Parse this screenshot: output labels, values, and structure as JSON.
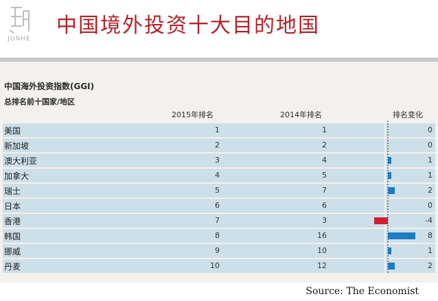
{
  "logo": {
    "brand": "JUNHE",
    "mark_icon": "junhe-seal-icon"
  },
  "page": {
    "title": "中国境外投资十大目的地国"
  },
  "source": "Source: The Economist",
  "colors": {
    "title": "#b0232a",
    "row": "#cddfe9",
    "positive_bar": "#1b7ec2",
    "negative_bar": "#d0202f"
  },
  "chart_data": {
    "type": "table",
    "title": "中国海外投资指数(GGI)",
    "subtitle": "总排名前十国家/地区",
    "columns": [
      "2015年排名",
      "2014年排名",
      "排名变化"
    ],
    "rows": [
      {
        "name": "美国",
        "rank_2015": 1,
        "rank_2014": 1,
        "change": 0
      },
      {
        "name": "新加坡",
        "rank_2015": 2,
        "rank_2014": 2,
        "change": 0
      },
      {
        "name": "澳大利亚",
        "rank_2015": 3,
        "rank_2014": 4,
        "change": 1
      },
      {
        "name": "加拿大",
        "rank_2015": 4,
        "rank_2014": 5,
        "change": 1
      },
      {
        "name": "瑞士",
        "rank_2015": 5,
        "rank_2014": 7,
        "change": 2
      },
      {
        "name": "日本",
        "rank_2015": 6,
        "rank_2014": 6,
        "change": 0
      },
      {
        "name": "香港",
        "rank_2015": 7,
        "rank_2014": 3,
        "change": -4
      },
      {
        "name": "韩国",
        "rank_2015": 8,
        "rank_2014": 16,
        "change": 8
      },
      {
        "name": "挪威",
        "rank_2015": 9,
        "rank_2014": 10,
        "change": 1
      },
      {
        "name": "丹麦",
        "rank_2015": 10,
        "rank_2014": 12,
        "change": 2
      }
    ]
  }
}
